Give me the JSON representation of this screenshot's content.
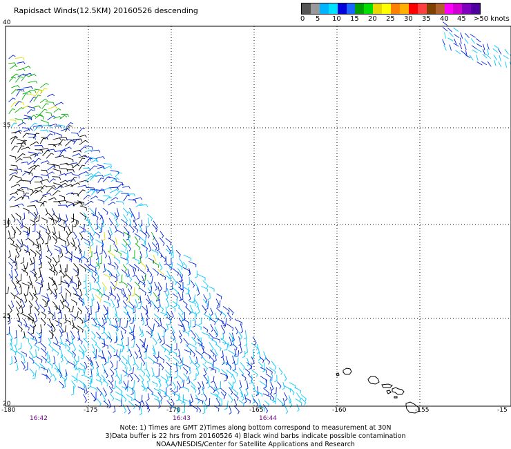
{
  "title": "Rapidsact Winds(12.5KM) 20160526 descending",
  "legend": {
    "colors": [
      "#555555",
      "#999999",
      "#00b4ff",
      "#00e0ff",
      "#0000dd",
      "#1a66ff",
      "#00a000",
      "#00e000",
      "#e8d800",
      "#ffff00",
      "#ff8000",
      "#ffb000",
      "#ff0000",
      "#ff4040",
      "#804000",
      "#b06030",
      "#ff00ff",
      "#d000d0",
      "#8000c0",
      "#5000a0"
    ],
    "labels": [
      "0",
      "5",
      "10",
      "15",
      "20",
      "25",
      "30",
      "35",
      "40",
      "45",
      ">50 knots"
    ]
  },
  "axes": {
    "lon_labels": [
      "-180",
      "-175",
      "-170",
      "-165",
      "-160",
      "-155",
      "-15"
    ],
    "lat_labels": [
      "40",
      "35",
      "30",
      "25",
      "20"
    ],
    "lon_range": [
      -180,
      -150
    ],
    "lat_range": [
      20,
      40
    ],
    "grid": true
  },
  "time_labels": [
    "16:42",
    "16:43",
    "16:44"
  ],
  "notes": [
    "Note: 1) Times are GMT 2)Times along bottom correspond to measurement at 30N",
    "3)Data buffer is 22 hrs from 20160526 4) Black wind barbs indicate possible contamination",
    "NOAA/NESDIS/Center for Satellite Applications and Research"
  ],
  "palette": {
    "contaminated": "#000000",
    "light": "#00c8ff",
    "moderate": "#0022dd",
    "breezy": "#00b000",
    "strong": "#e0e000"
  }
}
